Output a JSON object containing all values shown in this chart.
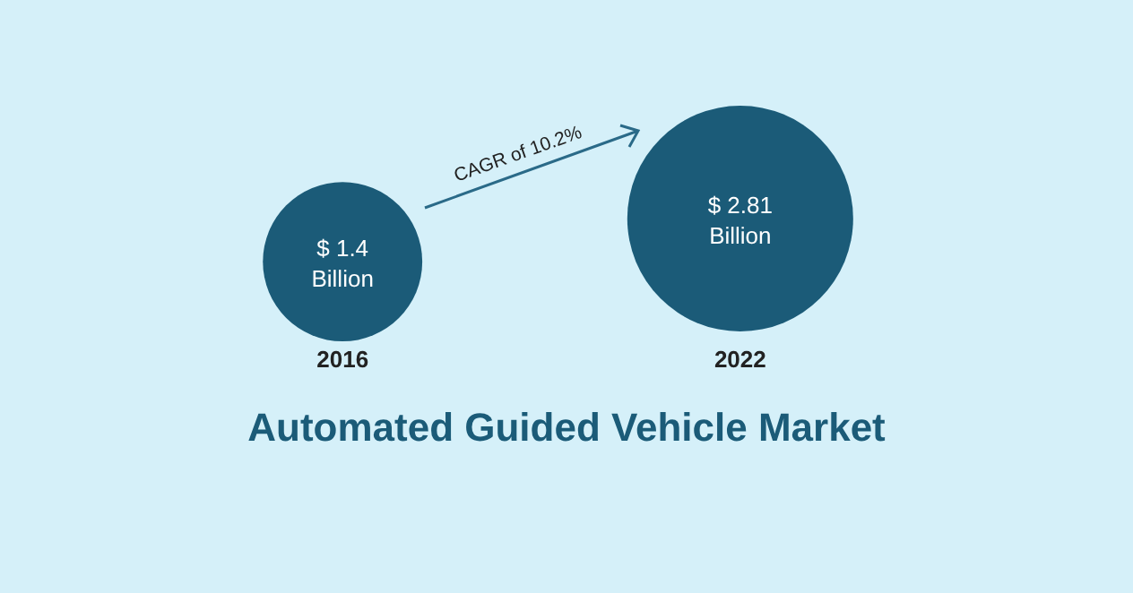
{
  "chart_data": {
    "type": "bubble",
    "title": "Automated Guided Vehicle Market",
    "categories": [
      "2016",
      "2022"
    ],
    "values": [
      1.4,
      2.81
    ],
    "sizes": [
      0.498,
      1
    ],
    "value_labels": [
      "$ 1.4 Billion",
      "$ 2.81 Billion"
    ],
    "color": "#1b5b78",
    "annotations": [
      "CAGR of 10.2%"
    ]
  }
}
